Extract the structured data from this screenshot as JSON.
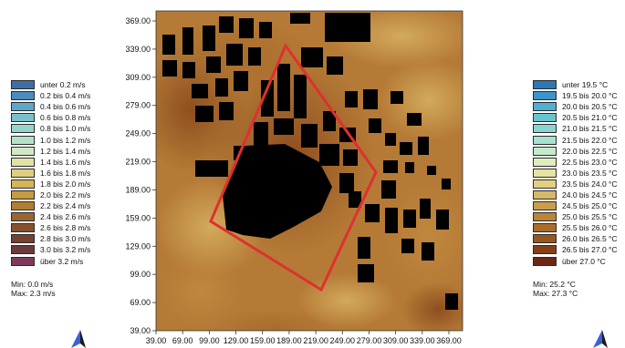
{
  "wind_legend": {
    "items": [
      {
        "label": "unter 0.2 m/s",
        "color": "#3f6ea4"
      },
      {
        "label": "0.2 bis 0.4 m/s",
        "color": "#4d8bbd"
      },
      {
        "label": "0.4 bis 0.6 m/s",
        "color": "#5ca8c8"
      },
      {
        "label": "0.6 bis 0.8 m/s",
        "color": "#79c2cb"
      },
      {
        "label": "0.8 bis 1.0 m/s",
        "color": "#97d4cb"
      },
      {
        "label": "1.0 bis 1.2 m/s",
        "color": "#b7e0cb"
      },
      {
        "label": "1.2 bis 1.4 m/s",
        "color": "#d2e8c2"
      },
      {
        "label": "1.4 bis 1.6 m/s",
        "color": "#e2e2a6"
      },
      {
        "label": "1.6 bis 1.8 m/s",
        "color": "#e0cf80"
      },
      {
        "label": "1.8 bis 2.0 m/s",
        "color": "#d6b45a"
      },
      {
        "label": "2.0 bis 2.2 m/s",
        "color": "#c89a3e"
      },
      {
        "label": "2.2 bis 2.4 m/s",
        "color": "#b27e33"
      },
      {
        "label": "2.4 bis 2.6 m/s",
        "color": "#9b6530"
      },
      {
        "label": "2.6 bis 2.8 m/s",
        "color": "#87512f"
      },
      {
        "label": "2.8 bis 3.0 m/s",
        "color": "#76412f"
      },
      {
        "label": "3.0 bis 3.2 m/s",
        "color": "#6b3a3c"
      },
      {
        "label": "über 3.2 m/s",
        "color": "#7d3a5a"
      }
    ],
    "min": "Min: 0.0 m/s",
    "max": "Max: 2.3 m/s"
  },
  "temp_legend": {
    "items": [
      {
        "label": "unter 19.5 °C",
        "color": "#2a78b5"
      },
      {
        "label": "19.5 bis 20.0 °C",
        "color": "#3c94c8"
      },
      {
        "label": "20.0 bis 20.5 °C",
        "color": "#4fb0d0"
      },
      {
        "label": "20.5 bis 21.0 °C",
        "color": "#69c4d0"
      },
      {
        "label": "21.0 bis 21.5 °C",
        "color": "#88d6cf"
      },
      {
        "label": "21.5 bis 22.0 °C",
        "color": "#a6e2cf"
      },
      {
        "label": "22.0 bis 22.5 °C",
        "color": "#c6eac9"
      },
      {
        "label": "22.5 bis 23.0 °C",
        "color": "#dfeebb"
      },
      {
        "label": "23.0 bis 23.5 °C",
        "color": "#e8e3a0"
      },
      {
        "label": "23.5 bis 24.0 °C",
        "color": "#e2cf84"
      },
      {
        "label": "24.0 bis 24.5 °C",
        "color": "#d6b868"
      },
      {
        "label": "24.5 bis 25.0 °C",
        "color": "#c99d4c"
      },
      {
        "label": "25.0 bis 25.5 °C",
        "color": "#bb853a"
      },
      {
        "label": "25.5 bis 26.0 °C",
        "color": "#aa6d2b"
      },
      {
        "label": "26.0 bis 26.5 °C",
        "color": "#985620"
      },
      {
        "label": "26.5 bis 27.0 °C",
        "color": "#854018"
      },
      {
        "label": "über 27.0 °C",
        "color": "#6c2812"
      }
    ],
    "min": "Min: 25.2 °C",
    "max": "Max: 27.3 °C"
  },
  "map": {
    "y_ticks": [
      "369.00",
      "339.00",
      "309.00",
      "279.00",
      "249.00",
      "219.00",
      "189.00",
      "159.00",
      "129.00",
      "99.00",
      "69.00",
      "39.00"
    ],
    "x_ticks": [
      "39.00",
      "69.00",
      "99.00",
      "129.00",
      "159.00",
      "189.00",
      "219.00",
      "249.00",
      "279.00",
      "309.00",
      "339.00",
      "369.00"
    ],
    "x_range": [
      39,
      369
    ],
    "y_range": [
      39,
      369
    ],
    "boundary_color": "#e03030",
    "building_color": "#000000"
  }
}
